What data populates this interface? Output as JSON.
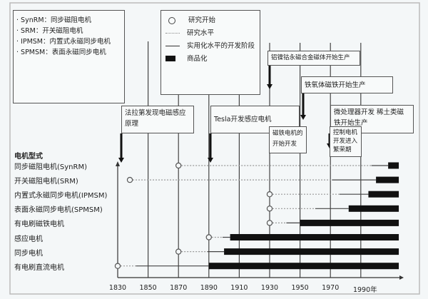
{
  "abbreviations": [
    "· SynRM：同步磁阻电机",
    "· SRM：开关磁阻电机",
    "· IPMSM：内置式永磁同步电机",
    "· SPMSM：表面永磁同步电机"
  ],
  "legend": {
    "circle": "研究开始",
    "dashed": "研究水平",
    "solid": "实用化水平的开发阶段",
    "bar": "商品化"
  },
  "events": [
    {
      "text": "法拉第发现电磁感应原理"
    },
    {
      "text": "Tesla开发感应电机"
    },
    {
      "text": "铝镍钴永磁合金磁体开始生产"
    },
    {
      "text": "铁氧体磁铁开始生产"
    },
    {
      "text": "微处理器开发 稀土类磁铁开始生产"
    },
    {
      "text": "磁铁电机的开始开发"
    },
    {
      "text": "控制电机开发进入繁荣期"
    }
  ],
  "chart_data": {
    "type": "timeline",
    "ylabel": "电机型式",
    "xlim": [
      1830,
      2015
    ],
    "x_ticks": [
      "1830",
      "1850",
      "1870",
      "1890",
      "1910",
      "1930",
      "1950",
      "1970",
      "1990年"
    ],
    "x_tick_values": [
      1830,
      1850,
      1870,
      1890,
      1910,
      1930,
      1950,
      1970,
      1990
    ],
    "series": [
      {
        "name": "同步磁阻电机(SynRM)",
        "research_start": 1870,
        "practical_start": 1997,
        "commercial_start": 2008,
        "end": 2015
      },
      {
        "name": "开关磁阻电机(SRM)",
        "research_start": 1838,
        "practical_start": 1971,
        "commercial_start": 2000,
        "end": 2015
      },
      {
        "name": "内置式永磁同步电机(IPMSM)",
        "research_start": 1930,
        "practical_start": 1976,
        "commercial_start": 1995,
        "end": 2015
      },
      {
        "name": "表面永磁同步电机(SPMSM)",
        "research_start": 1930,
        "practical_start": 1960,
        "commercial_start": 1982,
        "end": 2015
      },
      {
        "name": "有电刷磁铁电机",
        "research_start": 1930,
        "practical_start": 1941,
        "commercial_start": 1950,
        "end": 2015
      },
      {
        "name": "感应电机",
        "research_start": 1890,
        "practical_start": 1899,
        "commercial_start": 1904,
        "end": 2015
      },
      {
        "name": "同步电机",
        "research_start": 1870,
        "practical_start": 1889,
        "commercial_start": 1900,
        "end": 2015
      },
      {
        "name": "有电刷直流电机",
        "research_start": 1830,
        "practical_start": 1842,
        "commercial_start": 1890,
        "end": 2015
      }
    ]
  }
}
